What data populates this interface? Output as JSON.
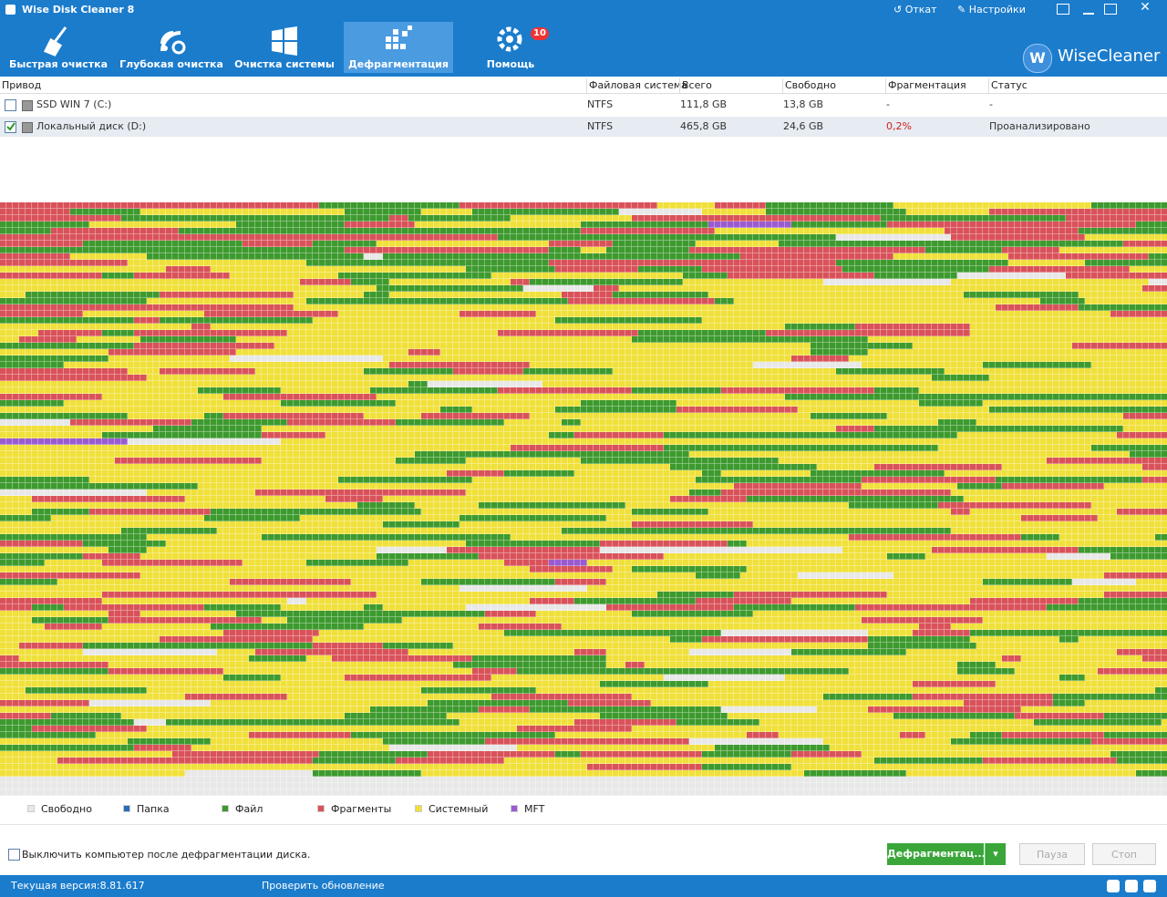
{
  "window": {
    "title": "Wise Disk Cleaner 8",
    "actions": [
      "Откат",
      "Настройки"
    ]
  },
  "tabs": [
    {
      "label": "Быстрая очистка",
      "active": false
    },
    {
      "label": "Глубокая очистка",
      "active": false
    },
    {
      "label": "Очистка системы",
      "active": false
    },
    {
      "label": "Дефрагментация",
      "active": true
    },
    {
      "label": "Помощь",
      "active": false,
      "badge": 10
    }
  ],
  "brand": "WiseCleaner",
  "table": {
    "columns": [
      "Привод",
      "Файловая система",
      "Всего",
      "Свободно",
      "Фрагментация",
      "Статус"
    ],
    "rows": [
      {
        "checked": false,
        "cells": [
          "SSD WIN 7 (C:)",
          "NTFS",
          "111,8 GB",
          "13,8 GB",
          "-",
          "-"
        ]
      },
      {
        "checked": true,
        "cells": [
          "Локальный диск (D:)",
          "NTFS",
          "465,8 GB",
          "24,6 GB",
          "0,2%",
          "Проанализировано"
        ]
      }
    ]
  },
  "legend": [
    {
      "label": "Свободно",
      "color": "#e8e8e8"
    },
    {
      "label": "Папка",
      "color": "#2a6db5"
    },
    {
      "label": "Файл",
      "color": "#3d9a2e"
    },
    {
      "label": "Фрагменты",
      "color": "#d9525a"
    },
    {
      "label": "Системный",
      "color": "#f0e03a"
    },
    {
      "label": "MFT",
      "color": "#9a5ad0"
    }
  ],
  "shutdown_option": "Выключить компьютер после дефрагментации диска.",
  "buttons": {
    "defrag": "Дефрагментац...",
    "pause": "Пауза",
    "stop": "Стоп"
  },
  "status": {
    "version": "Текущая версия:8.81.617",
    "update": "Проверить обновление"
  }
}
